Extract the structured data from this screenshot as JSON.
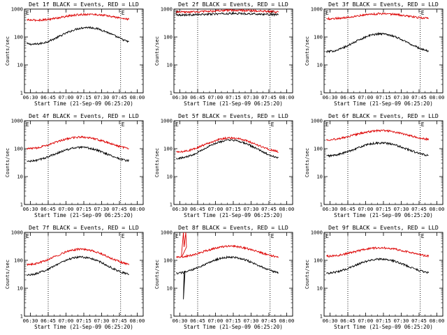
{
  "chart_data": [
    {
      "type": "line",
      "title": "Det 1f BLACK = Events, RED = LLD",
      "xlabel": "Start Time (21-Sep-09 06:25:20)",
      "ylabel": "Counts/sec",
      "yscale": "log",
      "ylim": [
        1,
        1000
      ],
      "xlim_minutes": [
        -5,
        90
      ],
      "x_ticks": [
        "06:30",
        "06:45",
        "07:00",
        "07:15",
        "07:30",
        "07:45",
        "08:00"
      ],
      "y_ticks": [
        "1",
        "10",
        "100",
        "1000"
      ],
      "markers": [
        "Start",
        "End"
      ],
      "series": [
        {
          "color": "#000000",
          "min": 55,
          "max": 220,
          "phase": 0.12
        },
        {
          "color": "#dd0000",
          "min": 400,
          "max": 650,
          "phase": 0.14
        }
      ]
    },
    {
      "type": "line",
      "title": "Det 2f BLACK = Events, RED = LLD",
      "xlabel": "Start Time (21-Sep-09 06:25:20)",
      "ylabel": "Counts/sec",
      "yscale": "log",
      "ylim": [
        1,
        1000
      ],
      "xlim_minutes": [
        -5,
        90
      ],
      "x_ticks": [
        "06:30",
        "06:45",
        "07:00",
        "07:15",
        "07:30",
        "07:45",
        "08:00"
      ],
      "y_ticks": [
        "1",
        "10",
        "100",
        "1000"
      ],
      "markers": [
        "Start",
        "End"
      ],
      "series": [
        {
          "color": "#000000",
          "min": 620,
          "max": 690,
          "phase": 0.1
        },
        {
          "color": "#dd0000",
          "min": 780,
          "max": 900,
          "phase": 0.1
        }
      ]
    },
    {
      "type": "line",
      "title": "Det 3f BLACK = Events, RED = LLD",
      "xlabel": "Start Time (21-Sep-09 06:25:20)",
      "ylabel": "Counts/sec",
      "yscale": "log",
      "ylim": [
        1,
        1000
      ],
      "xlim_minutes": [
        -5,
        90
      ],
      "x_ticks": [
        "06:30",
        "06:45",
        "07:00",
        "07:15",
        "07:30",
        "07:45",
        "08:00"
      ],
      "y_ticks": [
        "1",
        "10",
        "100",
        "1000"
      ],
      "markers": [
        "Start",
        "End"
      ],
      "series": [
        {
          "color": "#000000",
          "min": 30,
          "max": 130,
          "phase": 0.0
        },
        {
          "color": "#dd0000",
          "min": 450,
          "max": 680,
          "phase": 0.02
        }
      ]
    },
    {
      "type": "line",
      "title": "Det 4f BLACK = Events, RED = LLD",
      "xlabel": "Start Time (21-Sep-09 06:25:20)",
      "ylabel": "Counts/sec",
      "yscale": "log",
      "ylim": [
        1,
        1000
      ],
      "xlim_minutes": [
        -5,
        90
      ],
      "x_ticks": [
        "06:30",
        "06:45",
        "07:00",
        "07:15",
        "07:30",
        "07:45",
        "08:00"
      ],
      "y_ticks": [
        "1",
        "10",
        "100",
        "1000"
      ],
      "markers": [
        "Start",
        "End"
      ],
      "series": [
        {
          "color": "#000000",
          "min": 35,
          "max": 110,
          "phase": 0.0
        },
        {
          "color": "#dd0000",
          "min": 100,
          "max": 260,
          "phase": 0.0
        }
      ]
    },
    {
      "type": "line",
      "title": "Det 5f BLACK = Events, RED = LLD",
      "xlabel": "Start Time (21-Sep-09 06:25:20)",
      "ylabel": "Counts/sec",
      "yscale": "log",
      "ylim": [
        1,
        1000
      ],
      "xlim_minutes": [
        -5,
        90
      ],
      "x_ticks": [
        "06:30",
        "06:45",
        "07:00",
        "07:15",
        "07:30",
        "07:45",
        "08:00"
      ],
      "y_ticks": [
        "1",
        "10",
        "100",
        "1000"
      ],
      "markers": [
        "Start",
        "End"
      ],
      "series": [
        {
          "color": "#000000",
          "min": 45,
          "max": 200,
          "phase": 0.0
        },
        {
          "color": "#dd0000",
          "min": 75,
          "max": 240,
          "phase": 0.0
        }
      ]
    },
    {
      "type": "line",
      "title": "Det 6f BLACK = Events, RED = LLD",
      "xlabel": "Start Time (21-Sep-09 06:25:20)",
      "ylabel": "Counts/sec",
      "yscale": "log",
      "ylim": [
        1,
        1000
      ],
      "xlim_minutes": [
        -5,
        90
      ],
      "x_ticks": [
        "06:30",
        "06:45",
        "07:00",
        "07:15",
        "07:30",
        "07:45",
        "08:00"
      ],
      "y_ticks": [
        "1",
        "10",
        "100",
        "1000"
      ],
      "markers": [
        "Start",
        "End"
      ],
      "series": [
        {
          "color": "#000000",
          "min": 55,
          "max": 160,
          "phase": 0.0
        },
        {
          "color": "#dd0000",
          "min": 210,
          "max": 440,
          "phase": 0.0
        }
      ]
    },
    {
      "type": "line",
      "title": "Det 7f BLACK = Events, RED = LLD",
      "xlabel": "Start Time (21-Sep-09 06:25:20)",
      "ylabel": "Counts/sec",
      "yscale": "log",
      "ylim": [
        1,
        1000
      ],
      "xlim_minutes": [
        -5,
        90
      ],
      "x_ticks": [
        "06:30",
        "06:45",
        "07:00",
        "07:15",
        "07:30",
        "07:45",
        "08:00"
      ],
      "y_ticks": [
        "1",
        "10",
        "100",
        "1000"
      ],
      "markers": [
        "Start",
        "End"
      ],
      "series": [
        {
          "color": "#000000",
          "min": 30,
          "max": 130,
          "phase": 0.0
        },
        {
          "color": "#dd0000",
          "min": 70,
          "max": 250,
          "phase": 0.0
        }
      ]
    },
    {
      "type": "line",
      "title": "Det 8f BLACK = Events, RED = LLD",
      "xlabel": "Start Time (21-Sep-09 06:25:20)",
      "ylabel": "Counts/sec",
      "yscale": "log",
      "ylim": [
        1,
        1000
      ],
      "xlim_minutes": [
        -5,
        90
      ],
      "x_ticks": [
        "06:30",
        "06:45",
        "07:00",
        "07:15",
        "07:30",
        "07:45",
        "08:00"
      ],
      "y_ticks": [
        "1",
        "10",
        "100",
        "1000"
      ],
      "markers": [
        "Start",
        "End"
      ],
      "series": [
        {
          "color": "#000000",
          "min": 35,
          "max": 130,
          "phase": 0.0,
          "dropout": [
            [
              8,
              4
            ],
            [
              10,
              40
            ]
          ]
        },
        {
          "color": "#dd0000",
          "min": 130,
          "max": 320,
          "phase": 0.0,
          "spike": [
            [
              8,
              1000
            ],
            [
              10,
              1000
            ]
          ]
        }
      ]
    },
    {
      "type": "line",
      "title": "Det 9f BLACK = Events, RED = LLD",
      "xlabel": "Start Time (21-Sep-09 06:25:20)",
      "ylabel": "Counts/sec",
      "yscale": "log",
      "ylim": [
        1,
        1000
      ],
      "xlim_minutes": [
        -5,
        90
      ],
      "x_ticks": [
        "06:30",
        "06:45",
        "07:00",
        "07:15",
        "07:30",
        "07:45",
        "08:00"
      ],
      "y_ticks": [
        "1",
        "10",
        "100",
        "1000"
      ],
      "markers": [
        "Start",
        "End"
      ],
      "series": [
        {
          "color": "#000000",
          "min": 35,
          "max": 110,
          "phase": 0.0
        },
        {
          "color": "#dd0000",
          "min": 140,
          "max": 280,
          "phase": 0.0
        }
      ]
    }
  ]
}
